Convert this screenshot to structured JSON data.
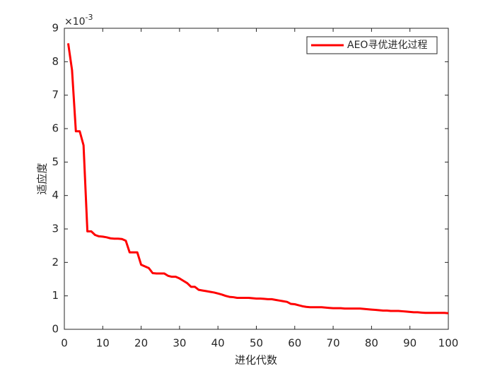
{
  "chart_data": {
    "type": "line",
    "xlabel": "进化代数",
    "ylabel": "适应度",
    "y_multiplier_base": "×10",
    "y_multiplier_exponent": "-3",
    "x": [
      1,
      2,
      3,
      4,
      5,
      6,
      7,
      8,
      9,
      10,
      11,
      12,
      13,
      14,
      15,
      16,
      17,
      18,
      19,
      20,
      21,
      22,
      23,
      24,
      25,
      26,
      27,
      28,
      29,
      30,
      31,
      32,
      33,
      34,
      35,
      36,
      37,
      38,
      39,
      40,
      41,
      42,
      43,
      44,
      45,
      46,
      47,
      48,
      49,
      50,
      51,
      52,
      53,
      54,
      55,
      56,
      57,
      58,
      59,
      60,
      61,
      62,
      63,
      64,
      65,
      66,
      67,
      68,
      69,
      70,
      71,
      72,
      73,
      74,
      75,
      76,
      77,
      78,
      79,
      80,
      81,
      82,
      83,
      84,
      85,
      86,
      87,
      88,
      89,
      90,
      91,
      92,
      93,
      94,
      95,
      96,
      97,
      98,
      99,
      100
    ],
    "series": [
      {
        "name": "AEO寻优进化过程",
        "color": "#ff0000",
        "values": [
          8.55,
          7.75,
          5.92,
          5.92,
          5.5,
          2.93,
          2.93,
          2.82,
          2.78,
          2.77,
          2.75,
          2.72,
          2.71,
          2.71,
          2.7,
          2.65,
          2.3,
          2.3,
          2.3,
          1.93,
          1.88,
          1.83,
          1.68,
          1.67,
          1.67,
          1.67,
          1.6,
          1.57,
          1.57,
          1.52,
          1.45,
          1.38,
          1.27,
          1.27,
          1.18,
          1.16,
          1.14,
          1.12,
          1.1,
          1.07,
          1.04,
          1.0,
          0.97,
          0.96,
          0.94,
          0.94,
          0.94,
          0.94,
          0.93,
          0.92,
          0.92,
          0.91,
          0.9,
          0.9,
          0.88,
          0.86,
          0.84,
          0.82,
          0.76,
          0.75,
          0.72,
          0.69,
          0.67,
          0.66,
          0.66,
          0.66,
          0.66,
          0.65,
          0.64,
          0.63,
          0.63,
          0.63,
          0.62,
          0.62,
          0.62,
          0.62,
          0.62,
          0.61,
          0.6,
          0.59,
          0.58,
          0.57,
          0.56,
          0.56,
          0.55,
          0.55,
          0.55,
          0.54,
          0.53,
          0.52,
          0.51,
          0.51,
          0.5,
          0.49,
          0.49,
          0.49,
          0.49,
          0.49,
          0.49,
          0.48
        ]
      }
    ],
    "xlim": [
      0,
      100
    ],
    "xticks": [
      0,
      10,
      20,
      30,
      40,
      50,
      60,
      70,
      80,
      90,
      100
    ],
    "ylim": [
      0,
      9
    ],
    "yticks": [
      0,
      1,
      2,
      3,
      4,
      5,
      6,
      7,
      8,
      9
    ],
    "legend_position": "upper right"
  }
}
